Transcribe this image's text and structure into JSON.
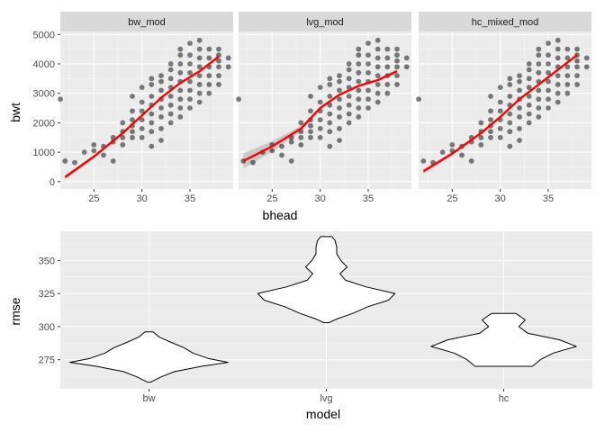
{
  "chart_data": [
    {
      "type": "scatter",
      "xlabel": "bhead",
      "ylabel": "bwt",
      "xlim": [
        21.5,
        39.5
      ],
      "ylim": [
        -250,
        5100
      ],
      "xticks": [
        25,
        30,
        35
      ],
      "yticks": [
        0,
        1000,
        2000,
        3000,
        4000,
        5000
      ],
      "xticklabels": [
        "25",
        "30",
        "35"
      ],
      "yticklabels": [
        "0",
        "1000",
        "2000",
        "3000",
        "4000",
        "5000"
      ],
      "grid": true,
      "colors": {
        "points": "#000000",
        "fit": "#ff0000",
        "ribbon": "#bdbdbd",
        "panel": "#ebebeb",
        "strip": "#d9d9d9"
      },
      "facets": [
        {
          "name": "bw_mod",
          "fit": [
            [
              22,
              150
            ],
            [
              25,
              850
            ],
            [
              28,
              1650
            ],
            [
              30,
              2250
            ],
            [
              32,
              2850
            ],
            [
              34,
              3350
            ],
            [
              36,
              3750
            ],
            [
              38,
              4250
            ]
          ],
          "ribbon_halfwidth": [
            80,
            60,
            30,
            20,
            20,
            20,
            30,
            60
          ]
        },
        {
          "name": "lvg_mod",
          "fit": [
            [
              22,
              700
            ],
            [
              25,
              1200
            ],
            [
              28,
              1800
            ],
            [
              30,
              2500
            ],
            [
              32,
              2950
            ],
            [
              34,
              3250
            ],
            [
              36,
              3450
            ],
            [
              38,
              3750
            ]
          ],
          "ribbon_halfwidth": [
            260,
            180,
            100,
            50,
            30,
            30,
            40,
            80
          ]
        },
        {
          "name": "hc_mixed_mod",
          "fit": [
            [
              22,
              350
            ],
            [
              25,
              950
            ],
            [
              28,
              1650
            ],
            [
              30,
              2200
            ],
            [
              32,
              2800
            ],
            [
              34,
              3300
            ],
            [
              36,
              3800
            ],
            [
              38,
              4300
            ]
          ],
          "ribbon_halfwidth": [
            80,
            60,
            30,
            20,
            20,
            20,
            30,
            60
          ]
        }
      ],
      "points": [
        [
          21.5,
          2800
        ],
        [
          22,
          700
        ],
        [
          23,
          650
        ],
        [
          24,
          1000
        ],
        [
          25,
          1050
        ],
        [
          25,
          1250
        ],
        [
          26,
          900
        ],
        [
          26,
          1200
        ],
        [
          27,
          1350
        ],
        [
          27,
          700
        ],
        [
          27,
          1500
        ],
        [
          28,
          1250
        ],
        [
          28,
          1500
        ],
        [
          28,
          1700
        ],
        [
          28,
          2000
        ],
        [
          29,
          1500
        ],
        [
          29,
          1700
        ],
        [
          29,
          1900
        ],
        [
          29,
          2100
        ],
        [
          29,
          2400
        ],
        [
          29,
          2900
        ],
        [
          30,
          1500
        ],
        [
          30,
          1800
        ],
        [
          30,
          2100
        ],
        [
          30,
          2400
        ],
        [
          30,
          2700
        ],
        [
          30,
          3200
        ],
        [
          31,
          1200
        ],
        [
          31,
          1700
        ],
        [
          31,
          2000
        ],
        [
          31,
          2300
        ],
        [
          31,
          2600
        ],
        [
          31,
          2900
        ],
        [
          31,
          3300
        ],
        [
          31,
          3500
        ],
        [
          32,
          1400
        ],
        [
          32,
          1800
        ],
        [
          32,
          2200
        ],
        [
          32,
          2500
        ],
        [
          32,
          2800
        ],
        [
          32,
          3100
        ],
        [
          32,
          3400
        ],
        [
          32,
          3600
        ],
        [
          33,
          2000
        ],
        [
          33,
          2300
        ],
        [
          33,
          2600
        ],
        [
          33,
          2900
        ],
        [
          33,
          3200
        ],
        [
          33,
          3500
        ],
        [
          33,
          3800
        ],
        [
          33,
          4000
        ],
        [
          34,
          2200
        ],
        [
          34,
          2500
        ],
        [
          34,
          2800
        ],
        [
          34,
          3100
        ],
        [
          34,
          3400
        ],
        [
          34,
          3700
        ],
        [
          34,
          4000
        ],
        [
          34,
          4300
        ],
        [
          34,
          4500
        ],
        [
          35,
          2500
        ],
        [
          35,
          2800
        ],
        [
          35,
          3100
        ],
        [
          35,
          3400
        ],
        [
          35,
          3700
        ],
        [
          35,
          4000
        ],
        [
          35,
          4300
        ],
        [
          35,
          4700
        ],
        [
          36,
          2700
        ],
        [
          36,
          3000
        ],
        [
          36,
          3300
        ],
        [
          36,
          3600
        ],
        [
          36,
          3900
        ],
        [
          36,
          4200
        ],
        [
          36,
          4500
        ],
        [
          36,
          4800
        ],
        [
          37,
          3000
        ],
        [
          37,
          3300
        ],
        [
          37,
          3600
        ],
        [
          37,
          3900
        ],
        [
          37,
          4200
        ],
        [
          37,
          4500
        ],
        [
          38,
          3300
        ],
        [
          38,
          3600
        ],
        [
          38,
          3900
        ],
        [
          38,
          4100
        ],
        [
          38,
          4300
        ],
        [
          38,
          4500
        ],
        [
          39,
          3900
        ],
        [
          39,
          4200
        ]
      ]
    },
    {
      "type": "violin",
      "xlabel": "model",
      "ylabel": "rmse",
      "categories": [
        "bw",
        "lvg",
        "hc"
      ],
      "ylim": [
        253,
        372
      ],
      "yticks": [
        275,
        300,
        325,
        350
      ],
      "yticklabels": [
        "275",
        "300",
        "325",
        "350"
      ],
      "grid": true,
      "colors": {
        "fill": "#ffffff",
        "outline": "#000000",
        "panel": "#ebebeb"
      },
      "violins": [
        {
          "category": "bw",
          "profile": [
            [
              258,
              0.02
            ],
            [
              262,
              0.15
            ],
            [
              266,
              0.32
            ],
            [
              270,
              0.66
            ],
            [
              273,
              0.99
            ],
            [
              276,
              0.74
            ],
            [
              280,
              0.55
            ],
            [
              284,
              0.44
            ],
            [
              288,
              0.28
            ],
            [
              292,
              0.13
            ],
            [
              296,
              0.05
            ]
          ]
        },
        {
          "category": "lvg",
          "profile": [
            [
              303,
              0.03
            ],
            [
              306,
              0.14
            ],
            [
              310,
              0.33
            ],
            [
              315,
              0.52
            ],
            [
              320,
              0.78
            ],
            [
              325,
              0.86
            ],
            [
              330,
              0.5
            ],
            [
              335,
              0.24
            ],
            [
              340,
              0.17
            ],
            [
              345,
              0.26
            ],
            [
              350,
              0.18
            ],
            [
              355,
              0.13
            ],
            [
              360,
              0.13
            ],
            [
              365,
              0.11
            ],
            [
              368,
              0.07
            ]
          ]
        },
        {
          "category": "hc",
          "profile": [
            [
              270,
              0.36
            ],
            [
              275,
              0.46
            ],
            [
              280,
              0.62
            ],
            [
              285,
              0.91
            ],
            [
              290,
              0.7
            ],
            [
              295,
              0.3
            ],
            [
              300,
              0.19
            ],
            [
              305,
              0.27
            ],
            [
              308,
              0.2
            ],
            [
              310,
              0.15
            ]
          ]
        }
      ]
    }
  ]
}
